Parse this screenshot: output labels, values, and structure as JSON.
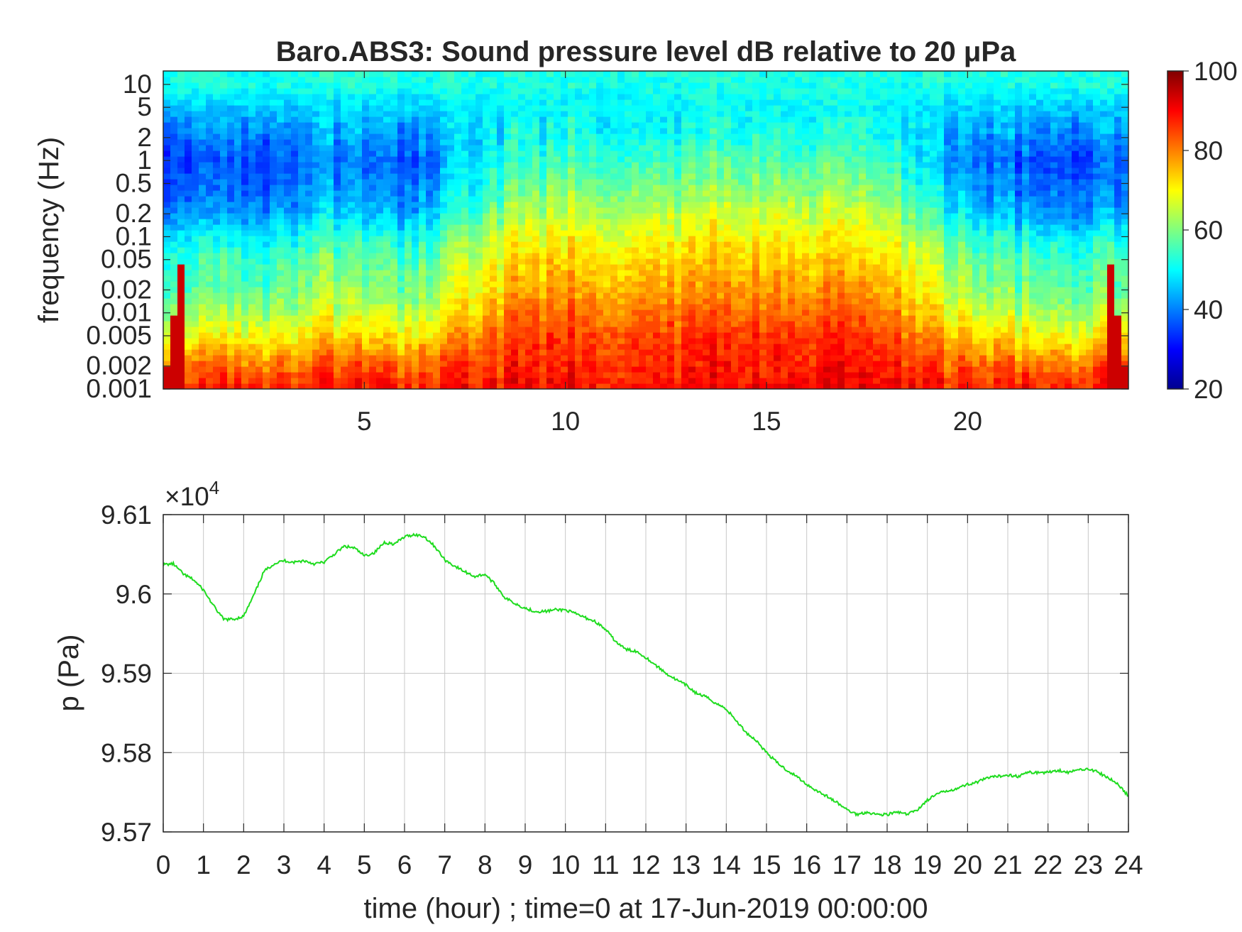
{
  "chart_data": [
    {
      "type": "heatmap",
      "title": "Baro.ABS3: Sound pressure level dB relative to 20 μPa",
      "xlabel": "",
      "ylabel": "frequency (Hz)",
      "xlim": [
        0,
        24
      ],
      "ylim": [
        0.001,
        15
      ],
      "yscale": "log",
      "x_ticks": [
        5,
        10,
        15,
        20
      ],
      "y_ticks": [
        10,
        5,
        2,
        1,
        0.5,
        0.2,
        0.1,
        0.05,
        0.02,
        0.01,
        0.005,
        0.002,
        0.001
      ],
      "colormap": "jet",
      "colorbar": {
        "range": [
          20,
          100
        ],
        "ticks": [
          100,
          80,
          60,
          40,
          20
        ]
      },
      "spl_by_frequency_dB": {
        "frequency": [
          10,
          5,
          2,
          1,
          0.5,
          0.2,
          0.1,
          0.05,
          0.02,
          0.01,
          0.005,
          0.002,
          0.001
        ],
        "quiet_hours_0_7_and_19_24": [
          52,
          46,
          40,
          36,
          38,
          42,
          50,
          55,
          58,
          63,
          70,
          82,
          88
        ],
        "active_hours_8_18": [
          52,
          50,
          52,
          56,
          60,
          66,
          70,
          74,
          78,
          82,
          86,
          88,
          90
        ]
      }
    },
    {
      "type": "line",
      "title": "",
      "xlabel": "time (hour) ; time=0 at 17-Jun-2019 00:00:00",
      "ylabel": "p (Pa)",
      "y_exponent_label": "×10",
      "y_exponent_power": "4",
      "xlim": [
        0,
        24
      ],
      "ylim": [
        9.57,
        9.61
      ],
      "x_ticks": [
        "0",
        "1",
        "2",
        "3",
        "4",
        "5",
        "6",
        "7",
        "8",
        "9",
        "10",
        "11",
        "12",
        "13",
        "14",
        "15",
        "16",
        "17",
        "18",
        "19",
        "20",
        "21",
        "22",
        "23",
        "24"
      ],
      "y_ticks": [
        "9.61",
        "9.6",
        "9.59",
        "9.58",
        "9.57"
      ],
      "grid": true,
      "line_color": "#1fdc1f",
      "series": [
        {
          "x": [
            0,
            0.25,
            0.5,
            0.75,
            1,
            1.25,
            1.5,
            1.75,
            2,
            2.25,
            2.5,
            2.75,
            3,
            3.25,
            3.5,
            3.75,
            4,
            4.25,
            4.5,
            4.75,
            5,
            5.25,
            5.5,
            5.75,
            6,
            6.25,
            6.5,
            6.75,
            7,
            7.25,
            7.5,
            7.75,
            8,
            8.25,
            8.5,
            8.75,
            9,
            9.25,
            9.5,
            9.75,
            10,
            10.25,
            10.5,
            10.75,
            11,
            11.25,
            11.5,
            11.75,
            12,
            12.25,
            12.5,
            12.75,
            13,
            13.25,
            13.5,
            13.75,
            14,
            14.25,
            14.5,
            14.75,
            15,
            15.25,
            15.5,
            15.75,
            16,
            16.25,
            16.5,
            16.75,
            17,
            17.25,
            17.5,
            17.75,
            18,
            18.25,
            18.5,
            18.75,
            19,
            19.25,
            19.5,
            19.75,
            20,
            20.25,
            20.5,
            20.75,
            21,
            21.25,
            21.5,
            21.75,
            22,
            22.25,
            22.5,
            22.75,
            23,
            23.25,
            23.5,
            23.75,
            24
          ],
          "y": [
            9.6037,
            9.6038,
            9.6025,
            9.6018,
            9.6005,
            9.5985,
            9.5968,
            9.5968,
            9.5972,
            9.5998,
            9.6028,
            9.6038,
            9.6042,
            9.604,
            9.6042,
            9.6038,
            9.604,
            9.605,
            9.606,
            9.6058,
            9.6048,
            9.6052,
            9.6065,
            9.6063,
            9.6072,
            9.6075,
            9.6072,
            9.606,
            9.6043,
            9.6035,
            9.6028,
            9.6022,
            9.6025,
            9.6012,
            9.5995,
            9.5988,
            9.5982,
            9.5978,
            9.5978,
            9.598,
            9.598,
            9.5975,
            9.597,
            9.5965,
            9.5955,
            9.594,
            9.593,
            9.5928,
            9.592,
            9.591,
            9.59,
            9.5892,
            9.5885,
            9.5875,
            9.587,
            9.5862,
            9.5855,
            9.584,
            9.5825,
            9.5815,
            9.58,
            9.5788,
            9.5778,
            9.577,
            9.576,
            9.5752,
            9.5745,
            9.5737,
            9.5728,
            9.5722,
            9.5725,
            9.5722,
            9.5722,
            9.5725,
            9.5722,
            9.5728,
            9.574,
            9.5748,
            9.5752,
            9.5755,
            9.576,
            9.5763,
            9.5768,
            9.577,
            9.5772,
            9.577,
            9.5775,
            9.5775,
            9.5775,
            9.5778,
            9.5775,
            9.5778,
            9.578,
            9.5775,
            9.5768,
            9.576,
            9.5745
          ]
        }
      ]
    }
  ]
}
